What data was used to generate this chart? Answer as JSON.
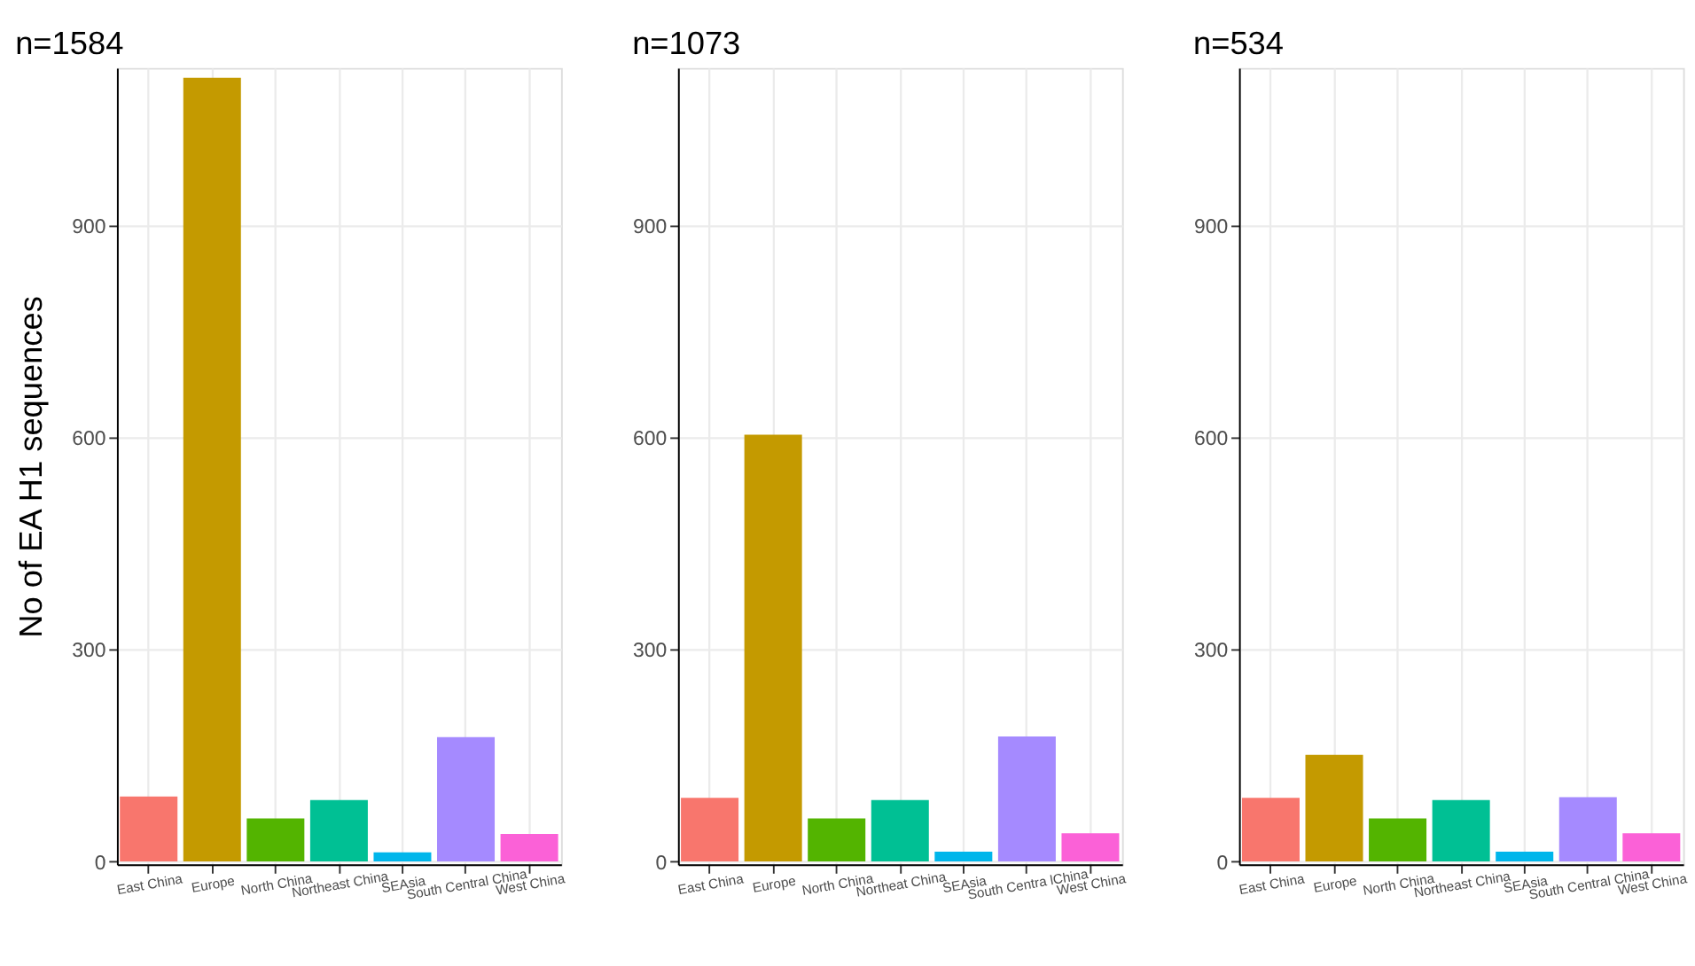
{
  "chart_data": [
    {
      "type": "bar",
      "title": "n=1584",
      "ylabel": "No of EA H1 sequences",
      "categories": [
        "East China",
        "Europe",
        "North China",
        "Northeast China",
        "SEAsia",
        "South Central China",
        "West China"
      ],
      "values": [
        92,
        1109,
        61,
        87,
        13,
        176,
        39
      ],
      "colors": [
        "#f8766d",
        "#c49a00",
        "#53b400",
        "#00c094",
        "#00b6eb",
        "#a58aff",
        "#fb61d7"
      ],
      "ylim": [
        -4,
        1123
      ],
      "yticks": [
        0,
        300,
        600,
        900
      ],
      "grid": true
    },
    {
      "type": "bar",
      "title": "n=1073",
      "categories": [
        "East China",
        "Europe",
        "North China",
        "Northeat China",
        "SEAsia",
        "South Centra lChina",
        "West China"
      ],
      "values": [
        90,
        604,
        61,
        87,
        14,
        177,
        40
      ],
      "colors": [
        "#f8766d",
        "#c49a00",
        "#53b400",
        "#00c094",
        "#00b6eb",
        "#a58aff",
        "#fb61d7"
      ],
      "ylim": [
        -4,
        1123
      ],
      "yticks": [
        0,
        300,
        600,
        900
      ],
      "grid": true
    },
    {
      "type": "bar",
      "title": "n=534",
      "categories": [
        "East China",
        "Europe",
        "North China",
        "Northeast China",
        "SEAsia",
        "South Central China",
        "West China"
      ],
      "values": [
        90,
        151,
        61,
        87,
        14,
        91,
        40
      ],
      "colors": [
        "#f8766d",
        "#c49a00",
        "#53b400",
        "#00c094",
        "#00b6eb",
        "#a58aff",
        "#fb61d7"
      ],
      "ylim": [
        -4,
        1123
      ],
      "yticks": [
        0,
        300,
        600,
        900
      ],
      "grid": true
    }
  ]
}
